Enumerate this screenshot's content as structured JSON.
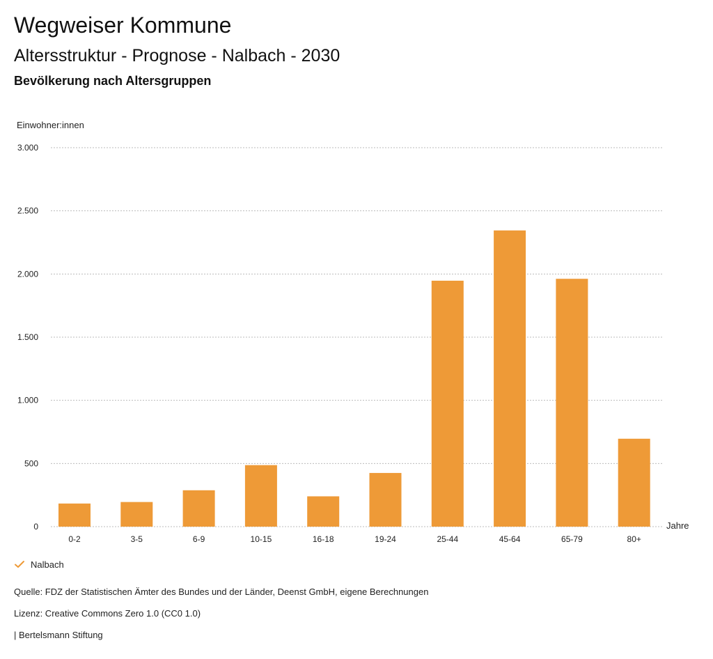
{
  "header": {
    "title": "Wegweiser Kommune",
    "subtitle": "Altersstruktur - Prognose - Nalbach - 2030",
    "section": "Bevölkerung nach Altersgruppen"
  },
  "chart_data": {
    "type": "bar",
    "ylabel": "Einwohner:innen",
    "xlabel": "Jahre",
    "categories": [
      "0-2",
      "3-5",
      "6-9",
      "10-15",
      "16-18",
      "19-24",
      "25-44",
      "45-64",
      "65-79",
      "80+"
    ],
    "series": [
      {
        "name": "Nalbach",
        "values": [
          183,
          195,
          288,
          487,
          240,
          425,
          1947,
          2345,
          1962,
          696
        ]
      }
    ],
    "ylim": [
      0,
      3000
    ],
    "yticks": [
      0,
      500,
      1000,
      1500,
      2000,
      2500,
      3000
    ],
    "ytick_labels": [
      "0",
      "500",
      "1.000",
      "1.500",
      "2.000",
      "2.500",
      "3.000"
    ],
    "grid": true,
    "legend_position": "bottom-left",
    "colors": {
      "bar": "#ee9a37",
      "grid": "#bbbbbb",
      "check": "#ee9a37"
    }
  },
  "footer": {
    "source": "Quelle: FDZ der Statistischen Ämter des Bundes und der Länder, Deenst GmbH, eigene Berechnungen",
    "license": "Lizenz: Creative Commons Zero 1.0 (CC0 1.0)",
    "publisher": "| Bertelsmann Stiftung"
  }
}
